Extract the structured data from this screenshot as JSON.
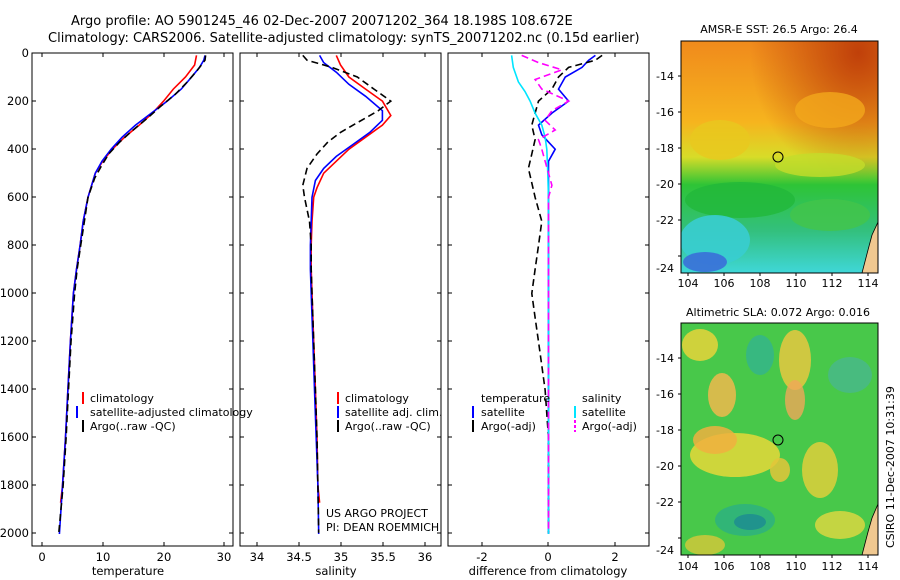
{
  "title_line1": "Argo profile: AO 5901245_46 02-Dec-2007 20071202_364 18.198S 108.672E",
  "title_line2": "Climatology: CARS2006. Satellite-adjusted climatology: synTS_20071202.nc (0.15d earlier)",
  "credit": "CSIRO 11-Dec-2007 10:31:39",
  "colors": {
    "climatology": "#ff0000",
    "satellite": "#0000ff",
    "argo": "#000000",
    "sal_satellite": "#00e5ff",
    "sal_argo": "#ff00ff"
  },
  "chart_data": [
    {
      "type": "line",
      "name": "temperature-panel",
      "xlabel": "temperature",
      "ylabel": "",
      "xlim": [
        -2,
        31
      ],
      "ylim": [
        2050,
        0
      ],
      "xticks": [
        "0",
        "10",
        "20",
        "30"
      ],
      "yticks": [
        "0",
        "200",
        "400",
        "600",
        "800",
        "1000",
        "1200",
        "1400",
        "1600",
        "1800",
        "2000"
      ],
      "legend": [
        "climatology",
        "satellite-adjusted climatology",
        "Argo(..raw -QC)"
      ],
      "series": [
        {
          "name": "climatology",
          "style": "solid",
          "color": "#ff0000",
          "points": [
            [
              25.0,
              10
            ],
            [
              24.7,
              50
            ],
            [
              23.2,
              100
            ],
            [
              21.2,
              150
            ],
            [
              19.6,
              200
            ],
            [
              17.8,
              250
            ],
            [
              15.6,
              300
            ],
            [
              13.2,
              350
            ],
            [
              11.2,
              400
            ],
            [
              9.6,
              450
            ],
            [
              8.4,
              500
            ],
            [
              7.2,
              600
            ],
            [
              6.4,
              700
            ],
            [
              5.9,
              800
            ],
            [
              5.3,
              900
            ],
            [
              4.8,
              1000
            ],
            [
              4.3,
              1200
            ],
            [
              3.9,
              1400
            ],
            [
              3.5,
              1600
            ],
            [
              3.0,
              1800
            ],
            [
              2.7,
              1870
            ]
          ]
        },
        {
          "name": "satellite-adjusted climatology",
          "style": "solid",
          "color": "#0000ff",
          "points": [
            [
              26.4,
              10
            ],
            [
              26.2,
              30
            ],
            [
              25.5,
              60
            ],
            [
              24.2,
              100
            ],
            [
              22.5,
              150
            ],
            [
              20.2,
              200
            ],
            [
              17.6,
              250
            ],
            [
              15.0,
              300
            ],
            [
              12.8,
              350
            ],
            [
              11.0,
              400
            ],
            [
              9.5,
              450
            ],
            [
              8.4,
              500
            ],
            [
              7.2,
              600
            ],
            [
              6.4,
              700
            ],
            [
              5.9,
              800
            ],
            [
              5.3,
              900
            ],
            [
              4.8,
              1000
            ],
            [
              4.3,
              1200
            ],
            [
              3.9,
              1400
            ],
            [
              3.5,
              1600
            ],
            [
              3.0,
              1800
            ],
            [
              2.5,
              2000
            ]
          ]
        },
        {
          "name": "Argo(..raw -QC)",
          "style": "dashed",
          "color": "#000000",
          "points": [
            [
              26.5,
              10
            ],
            [
              26.4,
              30
            ],
            [
              25.2,
              70
            ],
            [
              23.5,
              120
            ],
            [
              21.6,
              170
            ],
            [
              19.2,
              220
            ],
            [
              17.0,
              270
            ],
            [
              14.6,
              320
            ],
            [
              12.4,
              370
            ],
            [
              10.6,
              420
            ],
            [
              9.4,
              470
            ],
            [
              8.3,
              520
            ],
            [
              7.2,
              600
            ],
            [
              6.6,
              700
            ],
            [
              6.0,
              800
            ],
            [
              5.4,
              900
            ],
            [
              5.0,
              1000
            ],
            [
              4.4,
              1200
            ],
            [
              4.0,
              1400
            ],
            [
              3.6,
              1600
            ],
            [
              3.1,
              1800
            ],
            [
              2.4,
              1995
            ]
          ]
        }
      ]
    },
    {
      "type": "line",
      "name": "salinity-panel",
      "xlabel": "salinity",
      "xlim": [
        33.8,
        36.2
      ],
      "ylim": [
        2050,
        0
      ],
      "xticks": [
        "34",
        "34.5",
        "35",
        "35.5",
        "36"
      ],
      "legend": [
        "climatology",
        "satellite adj. clim.",
        "Argo(..raw -QC)"
      ],
      "annotations": [
        "US ARGO PROJECT",
        "PI: DEAN ROEMMICH"
      ],
      "series": [
        {
          "name": "climatology",
          "style": "solid",
          "color": "#ff0000",
          "points": [
            [
              34.95,
              10
            ],
            [
              35.0,
              50
            ],
            [
              35.1,
              100
            ],
            [
              35.3,
              150
            ],
            [
              35.5,
              200
            ],
            [
              35.6,
              260
            ],
            [
              35.5,
              300
            ],
            [
              35.3,
              350
            ],
            [
              35.1,
              400
            ],
            [
              34.95,
              450
            ],
            [
              34.8,
              500
            ],
            [
              34.72,
              560
            ],
            [
              34.68,
              600
            ],
            [
              34.66,
              700
            ],
            [
              34.65,
              800
            ],
            [
              34.65,
              900
            ],
            [
              34.66,
              1000
            ],
            [
              34.68,
              1200
            ],
            [
              34.7,
              1400
            ],
            [
              34.72,
              1600
            ],
            [
              34.73,
              1800
            ],
            [
              34.75,
              1870
            ]
          ]
        },
        {
          "name": "satellite adj. clim.",
          "style": "solid",
          "color": "#0000ff",
          "points": [
            [
              34.75,
              10
            ],
            [
              34.8,
              40
            ],
            [
              34.95,
              80
            ],
            [
              35.1,
              130
            ],
            [
              35.3,
              180
            ],
            [
              35.5,
              240
            ],
            [
              35.5,
              280
            ],
            [
              35.35,
              330
            ],
            [
              35.15,
              380
            ],
            [
              34.95,
              430
            ],
            [
              34.8,
              480
            ],
            [
              34.7,
              530
            ],
            [
              34.66,
              600
            ],
            [
              34.65,
              700
            ],
            [
              34.64,
              800
            ],
            [
              34.64,
              900
            ],
            [
              34.65,
              1000
            ],
            [
              34.67,
              1200
            ],
            [
              34.69,
              1400
            ],
            [
              34.71,
              1600
            ],
            [
              34.73,
              1800
            ],
            [
              34.74,
              2000
            ]
          ]
        },
        {
          "name": "Argo(..raw -QC)",
          "style": "dashed",
          "color": "#000000",
          "points": [
            [
              34.55,
              10
            ],
            [
              34.6,
              30
            ],
            [
              34.9,
              60
            ],
            [
              35.2,
              100
            ],
            [
              35.4,
              150
            ],
            [
              35.6,
              200
            ],
            [
              35.45,
              240
            ],
            [
              35.2,
              290
            ],
            [
              35.0,
              330
            ],
            [
              34.85,
              370
            ],
            [
              34.72,
              420
            ],
            [
              34.6,
              480
            ],
            [
              34.55,
              550
            ],
            [
              34.57,
              600
            ],
            [
              34.63,
              700
            ],
            [
              34.65,
              800
            ],
            [
              34.65,
              900
            ],
            [
              34.66,
              1000
            ],
            [
              34.68,
              1200
            ],
            [
              34.7,
              1400
            ],
            [
              34.72,
              1600
            ],
            [
              34.73,
              1800
            ],
            [
              34.74,
              1995
            ]
          ]
        }
      ]
    },
    {
      "type": "line",
      "name": "difference-panel",
      "xlabel": "difference from climatology",
      "xlim": [
        -3,
        3
      ],
      "ylim": [
        2050,
        0
      ],
      "xticks": [
        "-2",
        "0",
        "2"
      ],
      "legend_headers": [
        "temperature",
        "salinity"
      ],
      "legend": [
        "satellite",
        "Argo(-adj)",
        "satellite",
        "Argo(-adj)"
      ],
      "series": [
        {
          "name": "temperature satellite",
          "style": "solid",
          "color": "#0000ff",
          "points": [
            [
              1.4,
              10
            ],
            [
              1.2,
              30
            ],
            [
              1.0,
              60
            ],
            [
              0.5,
              100
            ],
            [
              0.3,
              150
            ],
            [
              0.6,
              200
            ],
            [
              0.1,
              250
            ],
            [
              -0.3,
              300
            ],
            [
              -0.2,
              340
            ],
            [
              0.2,
              400
            ],
            [
              0.0,
              450
            ],
            [
              0.0,
              500
            ],
            [
              0.0,
              600
            ],
            [
              0.0,
              800
            ],
            [
              0.0,
              1000
            ],
            [
              0.0,
              1200
            ],
            [
              0.0,
              1400
            ],
            [
              0.0,
              1600
            ],
            [
              0.0,
              1800
            ],
            [
              0.0,
              2000
            ]
          ]
        },
        {
          "name": "temperature Argo(-adj)",
          "style": "dashed",
          "color": "#000000",
          "points": [
            [
              1.6,
              10
            ],
            [
              1.4,
              30
            ],
            [
              0.6,
              60
            ],
            [
              0.3,
              100
            ],
            [
              0.1,
              150
            ],
            [
              -0.3,
              200
            ],
            [
              -0.4,
              250
            ],
            [
              -0.5,
              300
            ],
            [
              -0.4,
              360
            ],
            [
              -0.5,
              420
            ],
            [
              -0.6,
              480
            ],
            [
              -0.5,
              540
            ],
            [
              -0.4,
              600
            ],
            [
              -0.2,
              700
            ],
            [
              -0.3,
              800
            ],
            [
              -0.4,
              900
            ],
            [
              -0.5,
              1000
            ],
            [
              -0.4,
              1100
            ],
            [
              -0.3,
              1200
            ],
            [
              -0.2,
              1300
            ],
            [
              -0.1,
              1400
            ],
            [
              0.0,
              1600
            ],
            [
              0.0,
              1800
            ],
            [
              0.0,
              1995
            ]
          ]
        },
        {
          "name": "salinity satellite",
          "style": "solid",
          "color": "#00e5ff",
          "points": [
            [
              -1.1,
              10
            ],
            [
              -1.05,
              60
            ],
            [
              -0.9,
              120
            ],
            [
              -0.7,
              160
            ],
            [
              -0.55,
              200
            ],
            [
              -0.4,
              250
            ],
            [
              -0.2,
              300
            ],
            [
              -0.1,
              350
            ],
            [
              -0.05,
              400
            ],
            [
              -0.02,
              500
            ],
            [
              0.0,
              600
            ],
            [
              0.0,
              800
            ],
            [
              0.0,
              1000
            ],
            [
              0.0,
              1200
            ],
            [
              0.0,
              1400
            ],
            [
              0.0,
              1600
            ],
            [
              0.0,
              1800
            ],
            [
              0.0,
              2000
            ]
          ]
        },
        {
          "name": "salinity Argo(-adj)",
          "style": "dashed",
          "color": "#ff00ff",
          "points": [
            [
              -0.8,
              10
            ],
            [
              -0.3,
              40
            ],
            [
              0.4,
              70
            ],
            [
              -0.4,
              110
            ],
            [
              -0.2,
              150
            ],
            [
              0.6,
              200
            ],
            [
              0.1,
              240
            ],
            [
              -0.1,
              280
            ],
            [
              0.2,
              320
            ],
            [
              -0.3,
              360
            ],
            [
              -0.2,
              400
            ],
            [
              -0.1,
              450
            ],
            [
              0.0,
              500
            ],
            [
              0.1,
              550
            ],
            [
              0.0,
              600
            ],
            [
              0.0,
              700
            ],
            [
              0.0,
              800
            ],
            [
              0.0,
              1000
            ],
            [
              0.0,
              1200
            ],
            [
              0.0,
              1400
            ],
            [
              0.0,
              1600
            ],
            [
              0.0,
              1800
            ],
            [
              0.0,
              1995
            ]
          ]
        }
      ]
    },
    {
      "type": "heatmap",
      "name": "sst-map",
      "title": "AMSR-E SST: 26.5 Argo: 26.4",
      "xlim": [
        103,
        114
      ],
      "ylim": [
        -24.3,
        -12.8
      ],
      "xticks": [
        "104",
        "106",
        "108",
        "110",
        "112",
        "114"
      ],
      "yticks": [
        "-14",
        "-16",
        "-18",
        "-20",
        "-22",
        "-24"
      ],
      "marker": {
        "lon": 108.672,
        "lat": -18.198
      }
    },
    {
      "type": "heatmap",
      "name": "sla-map",
      "title": "Altimetric SLA: 0.072 Argo: 0.016",
      "xlim": [
        103,
        114
      ],
      "ylim": [
        -24.3,
        -12.8
      ],
      "xticks": [
        "104",
        "106",
        "108",
        "110",
        "112",
        "114"
      ],
      "yticks": [
        "-14",
        "-16",
        "-18",
        "-20",
        "-22",
        "-24"
      ],
      "marker": {
        "lon": 108.672,
        "lat": -18.198
      }
    }
  ]
}
